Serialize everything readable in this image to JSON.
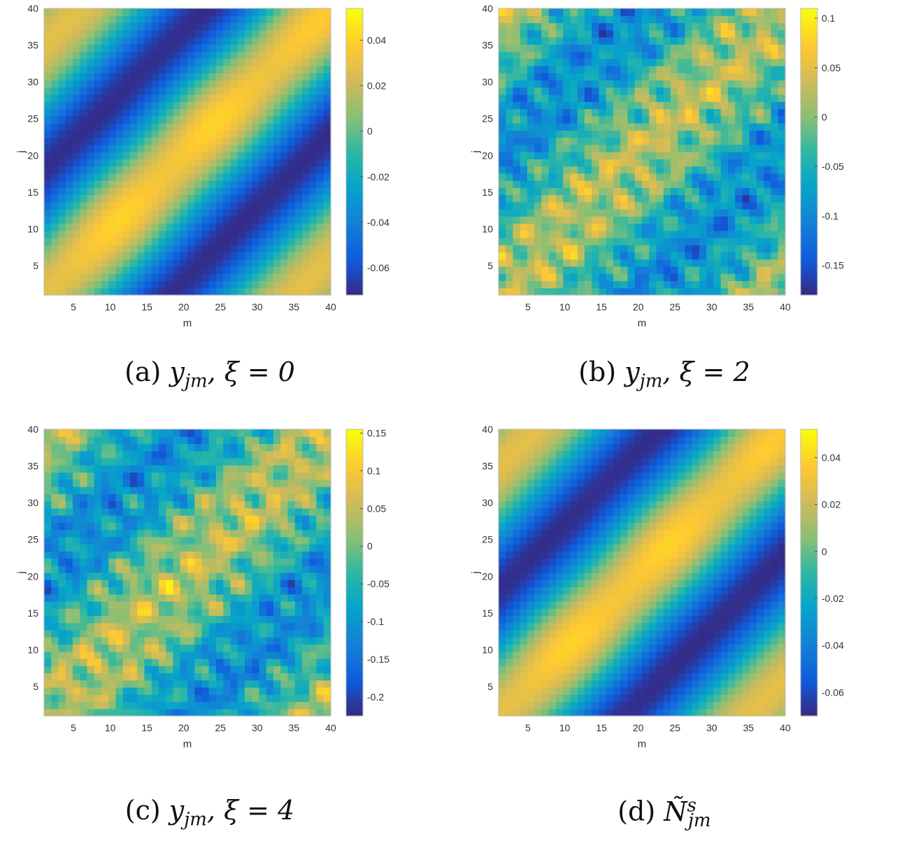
{
  "chart_data": [
    {
      "type": "heatmap",
      "caption_label": "(a)",
      "caption_math": "y_jm, ξ = 0",
      "xlabel": "m",
      "ylabel": "j",
      "xlim": [
        1,
        40
      ],
      "ylim": [
        1,
        40
      ],
      "xticks": [
        "5",
        "10",
        "15",
        "20",
        "25",
        "30",
        "35",
        "40"
      ],
      "yticks": [
        "5",
        "10",
        "15",
        "20",
        "25",
        "30",
        "35",
        "40"
      ],
      "colorbar": {
        "range": [
          -0.072,
          0.054
        ],
        "ticks": [
          -0.06,
          -0.04,
          -0.02,
          0,
          0.02,
          0.04
        ],
        "tick_labels": [
          "-0.06",
          "-0.04",
          "-0.02",
          "0",
          "0.02",
          "0.04"
        ]
      },
      "pattern": "smooth",
      "colormap": "parula"
    },
    {
      "type": "heatmap",
      "caption_label": "(b)",
      "caption_math": "y_jm, ξ = 2",
      "xlabel": "m",
      "ylabel": "j",
      "xlim": [
        1,
        40
      ],
      "ylim": [
        1,
        40
      ],
      "xticks": [
        "5",
        "10",
        "15",
        "20",
        "25",
        "30",
        "35",
        "40"
      ],
      "yticks": [
        "5",
        "10",
        "15",
        "20",
        "25",
        "30",
        "35",
        "40"
      ],
      "colorbar": {
        "range": [
          -0.18,
          0.11
        ],
        "ticks": [
          -0.15,
          -0.1,
          -0.05,
          0,
          0.05,
          0.1
        ],
        "tick_labels": [
          "-0.15",
          "-0.1",
          "-0.05",
          "0",
          "0.05",
          "0.1"
        ]
      },
      "pattern": "noisy",
      "colormap": "parula"
    },
    {
      "type": "heatmap",
      "caption_label": "(c)",
      "caption_math": "y_jm, ξ = 4",
      "xlabel": "m",
      "ylabel": "j",
      "xlim": [
        1,
        40
      ],
      "ylim": [
        1,
        40
      ],
      "xticks": [
        "5",
        "10",
        "15",
        "20",
        "25",
        "30",
        "35",
        "40"
      ],
      "yticks": [
        "5",
        "10",
        "15",
        "20",
        "25",
        "30",
        "35",
        "40"
      ],
      "colorbar": {
        "range": [
          -0.225,
          0.155
        ],
        "ticks": [
          -0.2,
          -0.15,
          -0.1,
          -0.05,
          0,
          0.05,
          0.1,
          0.15
        ],
        "tick_labels": [
          "-0.2",
          "-0.15",
          "-0.1",
          "-0.05",
          "0",
          "0.05",
          "0.1",
          "0.15"
        ]
      },
      "pattern": "noisy",
      "colormap": "parula"
    },
    {
      "type": "heatmap",
      "caption_label": "(d)",
      "caption_math": "Ñ^s_jm",
      "xlabel": "m",
      "ylabel": "j",
      "xlim": [
        1,
        40
      ],
      "ylim": [
        1,
        40
      ],
      "xticks": [
        "5",
        "10",
        "15",
        "20",
        "25",
        "30",
        "35",
        "40"
      ],
      "yticks": [
        "5",
        "10",
        "15",
        "20",
        "25",
        "30",
        "35",
        "40"
      ],
      "colorbar": {
        "range": [
          -0.07,
          0.052
        ],
        "ticks": [
          -0.06,
          -0.04,
          -0.02,
          0,
          0.02,
          0.04
        ],
        "tick_labels": [
          "-0.06",
          "-0.04",
          "-0.02",
          "0",
          "0.02",
          "0.04"
        ]
      },
      "pattern": "smooth",
      "colormap": "parula"
    }
  ]
}
